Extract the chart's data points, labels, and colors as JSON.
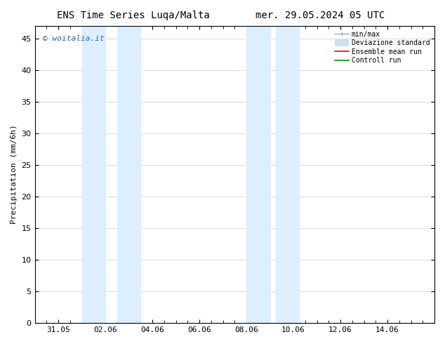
{
  "title_left": "ENS Time Series Luqa/Malta",
  "title_right": "mer. 29.05.2024 05 UTC",
  "ylabel": "Precipitation (mm/6h)",
  "watermark": "© woitalia.it",
  "xlim_start": 19872.0,
  "xlim_end": 19889.0,
  "ylim": [
    0,
    47
  ],
  "yticks": [
    0,
    5,
    10,
    15,
    20,
    25,
    30,
    35,
    40,
    45
  ],
  "xtick_labels": [
    "31.05",
    "02.06",
    "04.06",
    "06.06",
    "08.06",
    "10.06",
    "12.06",
    "14.06"
  ],
  "xtick_positions": [
    19873.0,
    19875.0,
    19877.0,
    19879.0,
    19881.0,
    19883.0,
    19885.0,
    19887.0
  ],
  "shaded_bands": [
    {
      "x_start": 19874.0,
      "x_end": 19875.0
    },
    {
      "x_start": 19875.5,
      "x_end": 19876.5
    },
    {
      "x_start": 19881.0,
      "x_end": 19882.0
    },
    {
      "x_start": 19882.25,
      "x_end": 19883.25
    }
  ],
  "shade_color": "#ddeeff",
  "background_color": "#ffffff",
  "plot_bg_color": "#ffffff",
  "title_fontsize": 10,
  "label_fontsize": 8,
  "tick_fontsize": 8,
  "watermark_color": "#3366bb",
  "grid_color": "#cccccc",
  "spine_color": "#000000",
  "legend_min_max_color": "#aaaaaa",
  "legend_std_color": "#cce0f0",
  "legend_mean_color": "#ff0000",
  "legend_control_color": "#008800"
}
